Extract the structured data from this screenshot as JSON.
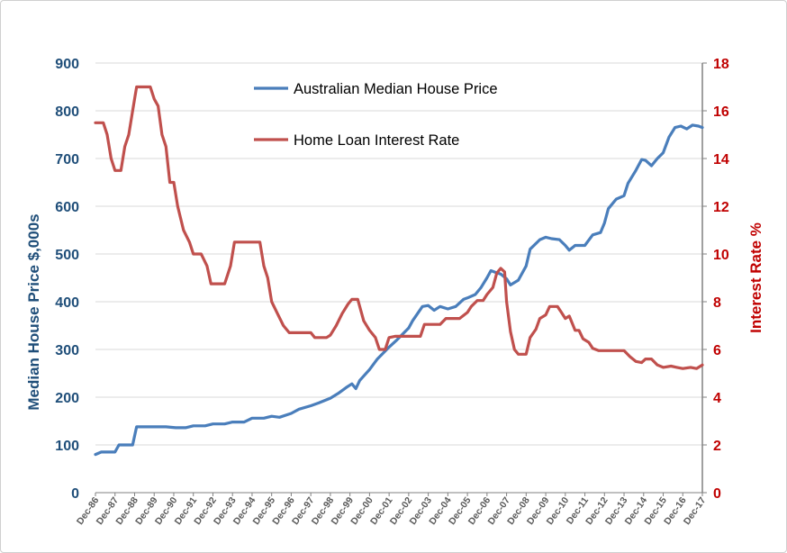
{
  "chart_data": {
    "type": "line",
    "title": "",
    "x": [
      "Dec-86",
      "Dec-87",
      "Dec-88",
      "Dec-89",
      "Dec-90",
      "Dec-91",
      "Dec-92",
      "Dec-93",
      "Dec-94",
      "Dec-95",
      "Dec-96",
      "Dec-97",
      "Dec-98",
      "Dec-99",
      "Dec-00",
      "Dec-01",
      "Dec-02",
      "Dec-03",
      "Dec-04",
      "Dec-05",
      "Dec-06",
      "Dec-07",
      "Dec-08",
      "Dec-09",
      "Dec-10",
      "Dec-11",
      "Dec-12",
      "Dec-13",
      "Dec-14",
      "Dec-15",
      "Dec-16",
      "Dec-17"
    ],
    "y_left": {
      "label": "Median House Price     $,000s",
      "range": [
        0,
        900
      ],
      "ticks": [
        "0",
        "100",
        "200",
        "300",
        "400",
        "500",
        "600",
        "700",
        "800",
        "900"
      ],
      "color": "#1f4e79"
    },
    "y_right": {
      "label": "Interest Rate  %",
      "range": [
        0,
        18
      ],
      "ticks": [
        "0",
        "2",
        "4",
        "6",
        "8",
        "10",
        "12",
        "14",
        "16",
        "18"
      ],
      "color": "#c00000"
    },
    "grid": "horizontal",
    "legend_position": "top-center",
    "series": [
      {
        "name": "Australian Median House Price",
        "axis": "left",
        "color": "#4a7ebb",
        "points": [
          [
            1986.9,
            80
          ],
          [
            1987.2,
            85
          ],
          [
            1987.9,
            85
          ],
          [
            1988.1,
            100
          ],
          [
            1988.8,
            100
          ],
          [
            1989.0,
            138
          ],
          [
            1989.5,
            138
          ],
          [
            1990.5,
            138
          ],
          [
            1991.0,
            136
          ],
          [
            1991.5,
            136
          ],
          [
            1991.9,
            140
          ],
          [
            1992.5,
            140
          ],
          [
            1992.9,
            144
          ],
          [
            1993.5,
            144
          ],
          [
            1993.9,
            148
          ],
          [
            1994.5,
            148
          ],
          [
            1994.9,
            156
          ],
          [
            1995.5,
            156
          ],
          [
            1995.9,
            160
          ],
          [
            1996.3,
            158
          ],
          [
            1996.9,
            166
          ],
          [
            1997.3,
            175
          ],
          [
            1997.9,
            182
          ],
          [
            1998.3,
            188
          ],
          [
            1998.9,
            198
          ],
          [
            1999.3,
            208
          ],
          [
            1999.7,
            220
          ],
          [
            2000.0,
            228
          ],
          [
            2000.2,
            218
          ],
          [
            2000.4,
            235
          ],
          [
            2000.9,
            258
          ],
          [
            2001.3,
            280
          ],
          [
            2001.9,
            305
          ],
          [
            2002.3,
            320
          ],
          [
            2002.9,
            345
          ],
          [
            2003.1,
            360
          ],
          [
            2003.6,
            390
          ],
          [
            2003.9,
            392
          ],
          [
            2004.2,
            382
          ],
          [
            2004.5,
            390
          ],
          [
            2004.9,
            385
          ],
          [
            2005.3,
            390
          ],
          [
            2005.7,
            405
          ],
          [
            2005.9,
            408
          ],
          [
            2006.3,
            415
          ],
          [
            2006.6,
            430
          ],
          [
            2006.9,
            450
          ],
          [
            2007.1,
            465
          ],
          [
            2007.3,
            462
          ],
          [
            2007.6,
            458
          ],
          [
            2007.9,
            448
          ],
          [
            2008.1,
            435
          ],
          [
            2008.5,
            445
          ],
          [
            2008.9,
            475
          ],
          [
            2009.1,
            510
          ],
          [
            2009.6,
            530
          ],
          [
            2009.9,
            535
          ],
          [
            2010.2,
            532
          ],
          [
            2010.6,
            530
          ],
          [
            2010.9,
            518
          ],
          [
            2011.1,
            508
          ],
          [
            2011.4,
            518
          ],
          [
            2011.9,
            518
          ],
          [
            2012.3,
            540
          ],
          [
            2012.7,
            545
          ],
          [
            2012.9,
            565
          ],
          [
            2013.1,
            595
          ],
          [
            2013.5,
            615
          ],
          [
            2013.9,
            622
          ],
          [
            2014.1,
            648
          ],
          [
            2014.5,
            675
          ],
          [
            2014.8,
            698
          ],
          [
            2015.0,
            696
          ],
          [
            2015.3,
            685
          ],
          [
            2015.6,
            700
          ],
          [
            2015.9,
            712
          ],
          [
            2016.2,
            745
          ],
          [
            2016.5,
            765
          ],
          [
            2016.8,
            768
          ],
          [
            2017.1,
            762
          ],
          [
            2017.4,
            770
          ],
          [
            2017.7,
            768
          ],
          [
            2017.9,
            765
          ]
        ]
      },
      {
        "name": "Home Loan Interest Rate",
        "axis": "right",
        "color": "#c0504d",
        "points": [
          [
            1986.9,
            15.5
          ],
          [
            1987.3,
            15.5
          ],
          [
            1987.5,
            15.0
          ],
          [
            1987.7,
            14.0
          ],
          [
            1987.9,
            13.5
          ],
          [
            1988.2,
            13.5
          ],
          [
            1988.4,
            14.5
          ],
          [
            1988.6,
            15.0
          ],
          [
            1988.8,
            16.0
          ],
          [
            1989.0,
            17.0
          ],
          [
            1989.5,
            17.0
          ],
          [
            1989.7,
            17.0
          ],
          [
            1989.9,
            16.5
          ],
          [
            1990.1,
            16.2
          ],
          [
            1990.3,
            15.0
          ],
          [
            1990.5,
            14.5
          ],
          [
            1990.7,
            13.0
          ],
          [
            1990.9,
            13.0
          ],
          [
            1991.1,
            12.0
          ],
          [
            1991.4,
            11.0
          ],
          [
            1991.7,
            10.5
          ],
          [
            1991.9,
            10.0
          ],
          [
            1992.3,
            10.0
          ],
          [
            1992.6,
            9.5
          ],
          [
            1992.8,
            8.75
          ],
          [
            1993.5,
            8.75
          ],
          [
            1993.8,
            9.5
          ],
          [
            1994.0,
            10.5
          ],
          [
            1994.5,
            10.5
          ],
          [
            1995.0,
            10.5
          ],
          [
            1995.3,
            10.5
          ],
          [
            1995.5,
            9.5
          ],
          [
            1995.7,
            9.0
          ],
          [
            1995.9,
            8.0
          ],
          [
            1996.2,
            7.5
          ],
          [
            1996.5,
            7.0
          ],
          [
            1996.8,
            6.7
          ],
          [
            1997.5,
            6.7
          ],
          [
            1997.9,
            6.7
          ],
          [
            1998.1,
            6.5
          ],
          [
            1998.7,
            6.5
          ],
          [
            1998.9,
            6.6
          ],
          [
            1999.2,
            7.0
          ],
          [
            1999.5,
            7.5
          ],
          [
            1999.8,
            7.9
          ],
          [
            2000.0,
            8.1
          ],
          [
            2000.3,
            8.1
          ],
          [
            2000.6,
            7.2
          ],
          [
            2000.9,
            6.8
          ],
          [
            2001.2,
            6.5
          ],
          [
            2001.4,
            6.0
          ],
          [
            2001.7,
            6.0
          ],
          [
            2001.9,
            6.5
          ],
          [
            2002.2,
            6.55
          ],
          [
            2003.0,
            6.55
          ],
          [
            2003.5,
            6.55
          ],
          [
            2003.7,
            7.05
          ],
          [
            2004.5,
            7.05
          ],
          [
            2004.8,
            7.3
          ],
          [
            2005.5,
            7.3
          ],
          [
            2005.9,
            7.55
          ],
          [
            2006.1,
            7.8
          ],
          [
            2006.4,
            8.05
          ],
          [
            2006.7,
            8.05
          ],
          [
            2006.9,
            8.3
          ],
          [
            2007.2,
            8.6
          ],
          [
            2007.4,
            9.2
          ],
          [
            2007.6,
            9.4
          ],
          [
            2007.8,
            9.25
          ],
          [
            2007.9,
            8.0
          ],
          [
            2008.1,
            6.75
          ],
          [
            2008.3,
            6.0
          ],
          [
            2008.5,
            5.8
          ],
          [
            2008.9,
            5.8
          ],
          [
            2009.1,
            6.5
          ],
          [
            2009.4,
            6.85
          ],
          [
            2009.6,
            7.3
          ],
          [
            2009.9,
            7.45
          ],
          [
            2010.1,
            7.8
          ],
          [
            2010.5,
            7.8
          ],
          [
            2010.7,
            7.55
          ],
          [
            2010.9,
            7.3
          ],
          [
            2011.1,
            7.4
          ],
          [
            2011.4,
            6.8
          ],
          [
            2011.6,
            6.8
          ],
          [
            2011.8,
            6.45
          ],
          [
            2012.1,
            6.3
          ],
          [
            2012.3,
            6.05
          ],
          [
            2012.6,
            5.95
          ],
          [
            2012.9,
            5.95
          ],
          [
            2013.3,
            5.95
          ],
          [
            2013.9,
            5.95
          ],
          [
            2014.2,
            5.7
          ],
          [
            2014.5,
            5.5
          ],
          [
            2014.8,
            5.45
          ],
          [
            2015.0,
            5.6
          ],
          [
            2015.3,
            5.6
          ],
          [
            2015.6,
            5.35
          ],
          [
            2015.9,
            5.25
          ],
          [
            2016.3,
            5.3
          ],
          [
            2016.6,
            5.25
          ],
          [
            2016.9,
            5.2
          ],
          [
            2017.3,
            5.25
          ],
          [
            2017.6,
            5.2
          ],
          [
            2017.9,
            5.35
          ]
        ]
      }
    ]
  }
}
